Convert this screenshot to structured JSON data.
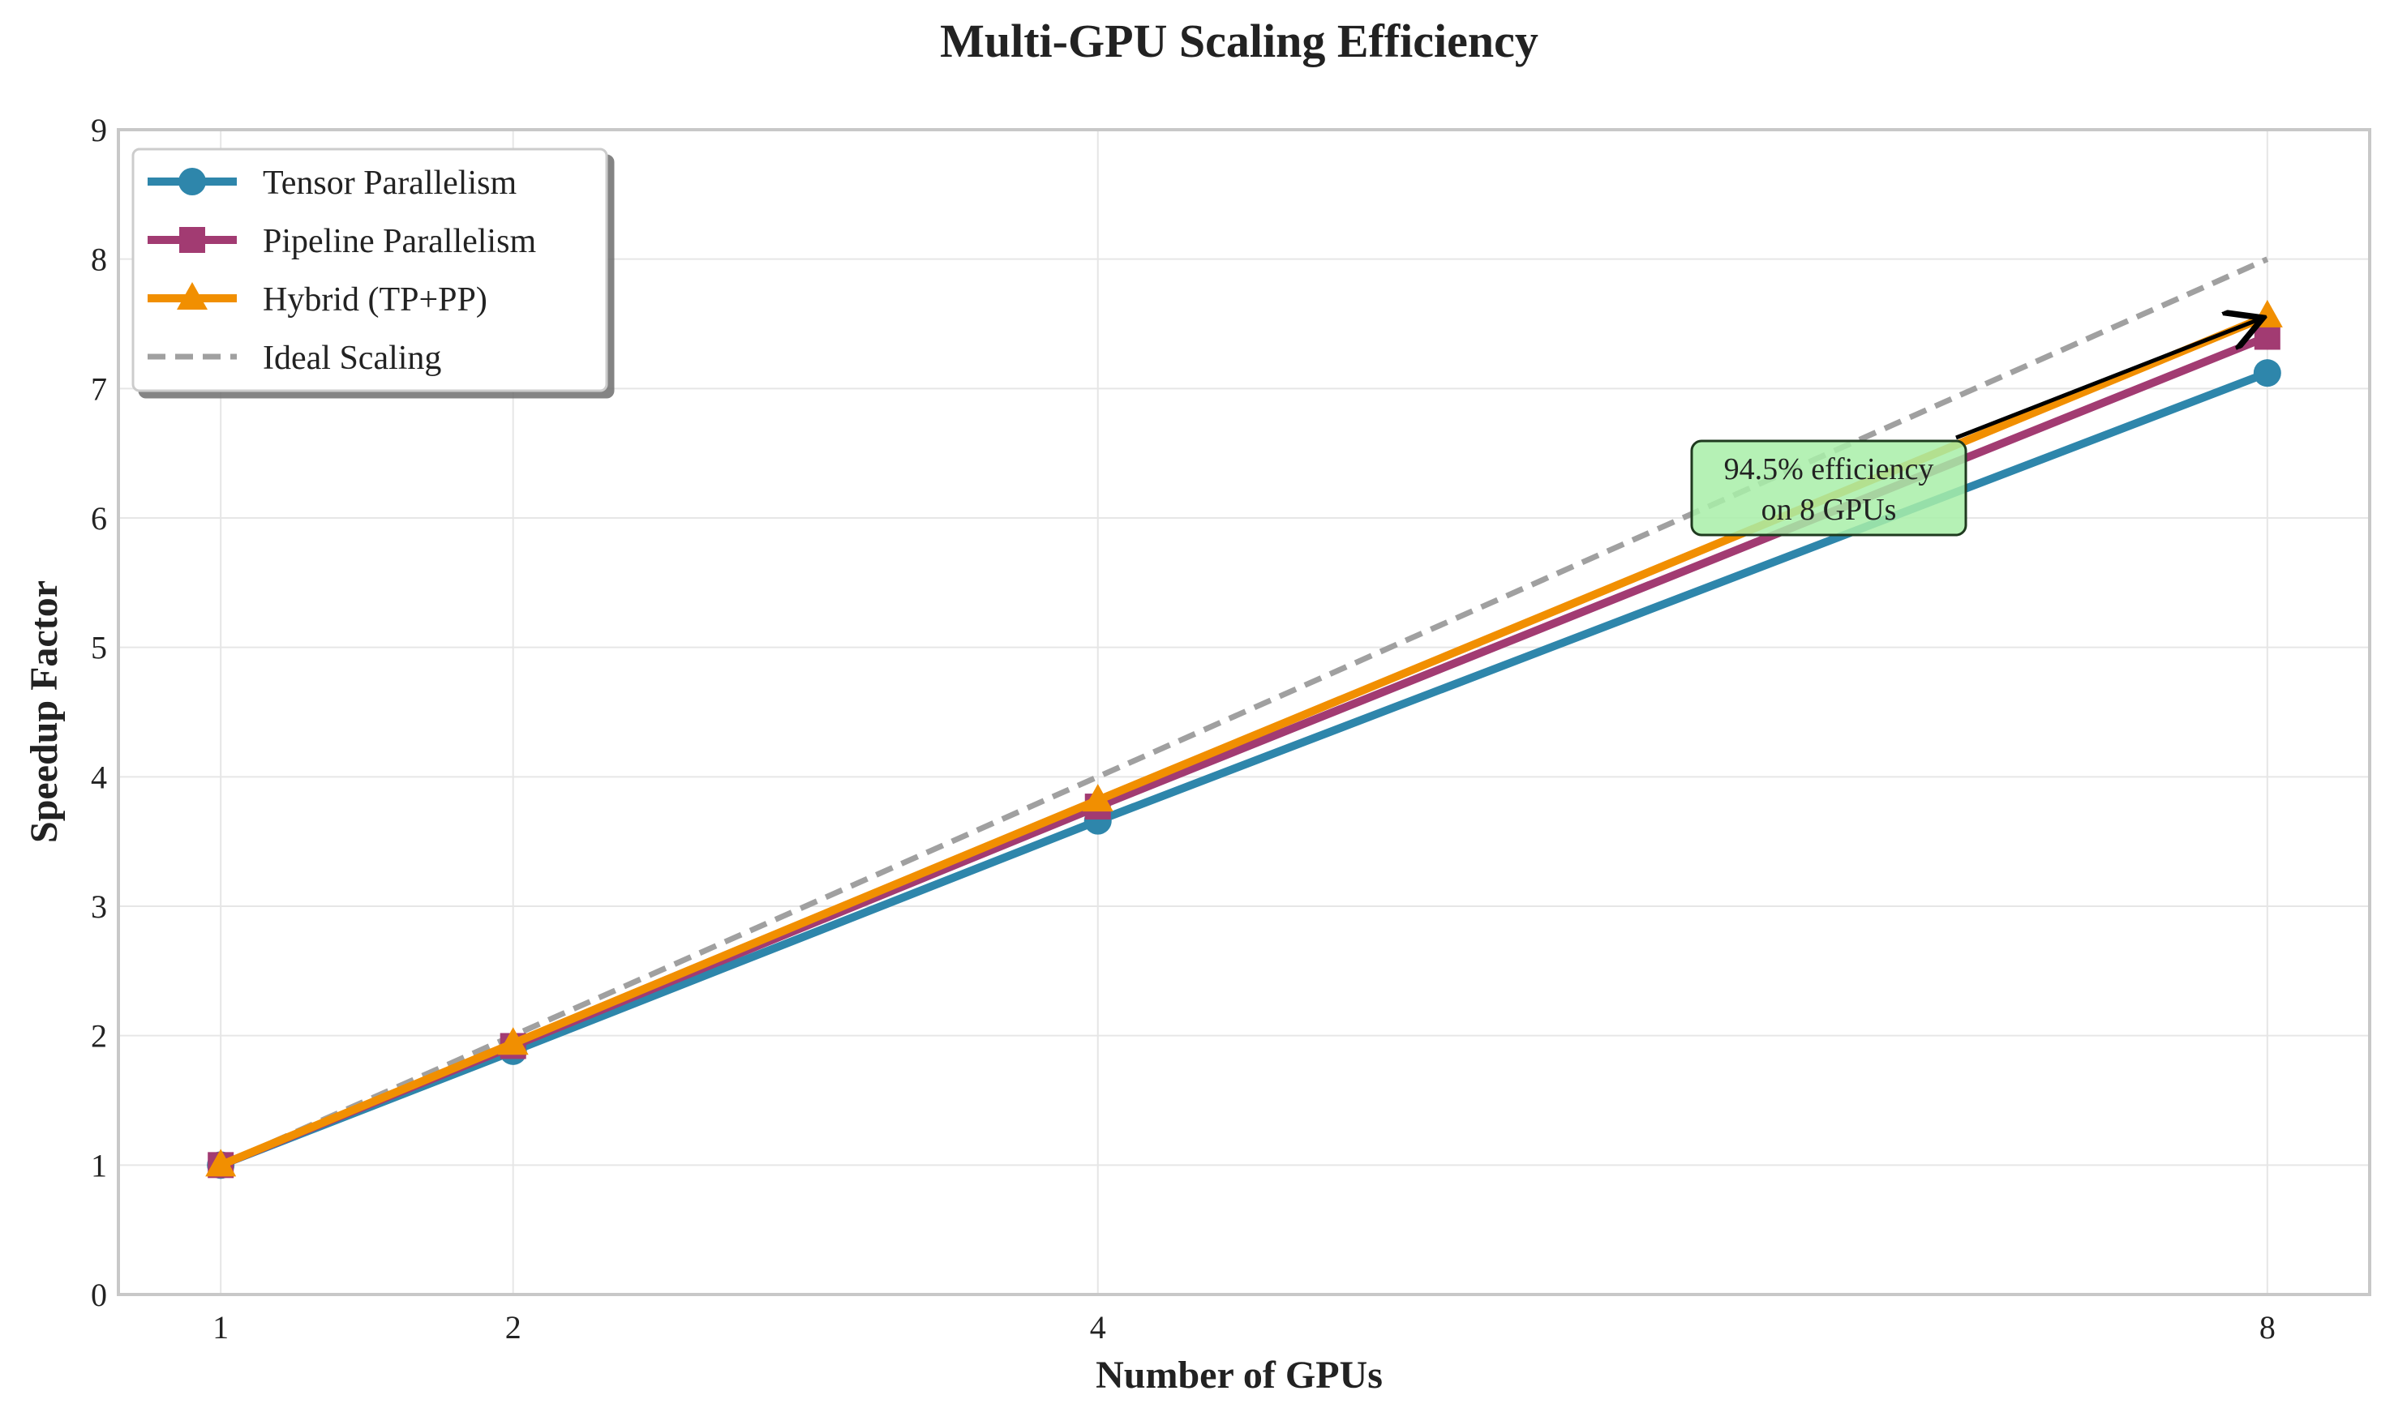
{
  "chart_data": {
    "type": "line",
    "title": "Multi-GPU Scaling Efficiency",
    "xlabel": "Number of GPUs",
    "ylabel": "Speedup Factor",
    "x": [
      1,
      2,
      4,
      8
    ],
    "xticks": [
      "1",
      "2",
      "4",
      "8"
    ],
    "xlim": [
      0.65,
      8.35
    ],
    "ylim": [
      0,
      9
    ],
    "yticks": [
      "0",
      "1",
      "2",
      "3",
      "4",
      "5",
      "6",
      "7",
      "8",
      "9"
    ],
    "grid": true,
    "legend_position": "top-left",
    "series": [
      {
        "name": "Tensor Parallelism",
        "values": [
          1.0,
          1.88,
          3.66,
          7.12
        ],
        "color": "#2E86AB",
        "marker": "circle",
        "style": "solid"
      },
      {
        "name": "Pipeline Parallelism",
        "values": [
          1.0,
          1.92,
          3.77,
          7.4
        ],
        "color": "#A23B72",
        "marker": "square",
        "style": "solid"
      },
      {
        "name": "Hybrid (TP+PP)",
        "values": [
          1.0,
          1.94,
          3.82,
          7.56
        ],
        "color": "#F18F01",
        "marker": "triangle",
        "style": "solid"
      },
      {
        "name": "Ideal Scaling",
        "values": [
          1,
          2,
          4,
          8
        ],
        "color": "#A0A0A0",
        "marker": "none",
        "style": "dashed"
      }
    ],
    "annotation": {
      "lines": [
        "94.5% efficiency",
        "on 8 GPUs"
      ],
      "target": {
        "x": 8,
        "y": 7.56
      },
      "box_color": "#A8EEA8"
    }
  }
}
